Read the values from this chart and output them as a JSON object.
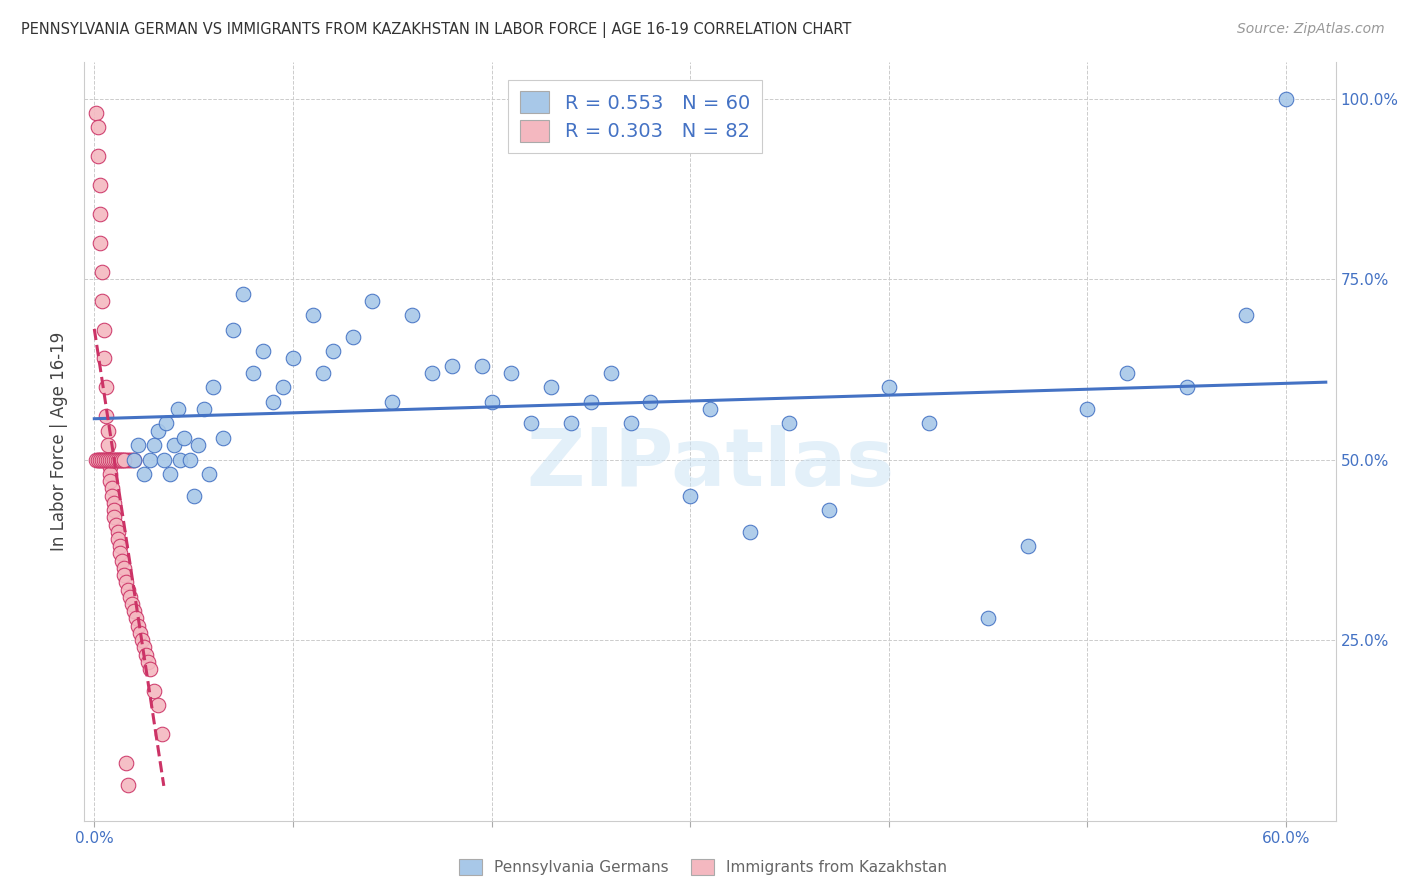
{
  "title": "PENNSYLVANIA GERMAN VS IMMIGRANTS FROM KAZAKHSTAN IN LABOR FORCE | AGE 16-19 CORRELATION CHART",
  "source": "Source: ZipAtlas.com",
  "ylabel": "In Labor Force | Age 16-19",
  "blue_color": "#a8c8e8",
  "pink_color": "#f4b8c0",
  "trend_blue": "#4472c4",
  "trend_pink": "#cc3366",
  "legend_blue_r": "R = 0.553",
  "legend_blue_n": "N = 60",
  "legend_pink_r": "R = 0.303",
  "legend_pink_n": "N = 82",
  "watermark": "ZIPatlas",
  "blue_x": [
    0.02,
    0.022,
    0.025,
    0.028,
    0.03,
    0.032,
    0.035,
    0.036,
    0.038,
    0.04,
    0.042,
    0.043,
    0.045,
    0.048,
    0.05,
    0.052,
    0.055,
    0.058,
    0.06,
    0.065,
    0.07,
    0.075,
    0.08,
    0.085,
    0.09,
    0.095,
    0.1,
    0.11,
    0.115,
    0.12,
    0.13,
    0.14,
    0.15,
    0.16,
    0.17,
    0.18,
    0.195,
    0.2,
    0.21,
    0.22,
    0.23,
    0.24,
    0.25,
    0.26,
    0.27,
    0.28,
    0.3,
    0.31,
    0.33,
    0.35,
    0.37,
    0.4,
    0.42,
    0.45,
    0.47,
    0.5,
    0.52,
    0.55,
    0.58,
    0.6
  ],
  "blue_y": [
    0.5,
    0.52,
    0.48,
    0.5,
    0.52,
    0.54,
    0.5,
    0.55,
    0.48,
    0.52,
    0.57,
    0.5,
    0.53,
    0.5,
    0.45,
    0.52,
    0.57,
    0.48,
    0.6,
    0.53,
    0.68,
    0.73,
    0.62,
    0.65,
    0.58,
    0.6,
    0.64,
    0.7,
    0.62,
    0.65,
    0.67,
    0.72,
    0.58,
    0.7,
    0.62,
    0.63,
    0.63,
    0.58,
    0.62,
    0.55,
    0.6,
    0.55,
    0.58,
    0.62,
    0.55,
    0.58,
    0.45,
    0.57,
    0.4,
    0.55,
    0.43,
    0.6,
    0.55,
    0.28,
    0.38,
    0.57,
    0.62,
    0.6,
    0.7,
    1.0
  ],
  "pink_x": [
    0.001,
    0.002,
    0.002,
    0.002,
    0.003,
    0.003,
    0.003,
    0.003,
    0.004,
    0.004,
    0.004,
    0.005,
    0.005,
    0.005,
    0.006,
    0.006,
    0.006,
    0.007,
    0.007,
    0.007,
    0.008,
    0.008,
    0.008,
    0.008,
    0.009,
    0.009,
    0.009,
    0.01,
    0.01,
    0.01,
    0.01,
    0.011,
    0.011,
    0.012,
    0.012,
    0.012,
    0.013,
    0.013,
    0.013,
    0.014,
    0.014,
    0.015,
    0.015,
    0.015,
    0.016,
    0.016,
    0.017,
    0.017,
    0.018,
    0.018,
    0.019,
    0.019,
    0.02,
    0.02,
    0.021,
    0.022,
    0.023,
    0.024,
    0.025,
    0.026,
    0.027,
    0.028,
    0.03,
    0.032,
    0.034,
    0.001,
    0.002,
    0.003,
    0.004,
    0.005,
    0.006,
    0.007,
    0.008,
    0.009,
    0.01,
    0.011,
    0.012,
    0.013,
    0.014,
    0.015,
    0.016,
    0.017
  ],
  "pink_y": [
    0.98,
    0.96,
    0.92,
    0.5,
    0.88,
    0.84,
    0.5,
    0.8,
    0.76,
    0.72,
    0.5,
    0.68,
    0.64,
    0.5,
    0.6,
    0.56,
    0.5,
    0.54,
    0.52,
    0.5,
    0.49,
    0.48,
    0.5,
    0.47,
    0.46,
    0.5,
    0.45,
    0.44,
    0.5,
    0.43,
    0.42,
    0.41,
    0.5,
    0.4,
    0.5,
    0.39,
    0.38,
    0.5,
    0.37,
    0.36,
    0.5,
    0.35,
    0.34,
    0.5,
    0.33,
    0.5,
    0.32,
    0.5,
    0.31,
    0.5,
    0.3,
    0.5,
    0.29,
    0.5,
    0.28,
    0.27,
    0.26,
    0.25,
    0.24,
    0.23,
    0.22,
    0.21,
    0.18,
    0.16,
    0.12,
    0.5,
    0.5,
    0.5,
    0.5,
    0.5,
    0.5,
    0.5,
    0.5,
    0.5,
    0.5,
    0.5,
    0.5,
    0.5,
    0.5,
    0.5,
    0.08,
    0.05
  ]
}
